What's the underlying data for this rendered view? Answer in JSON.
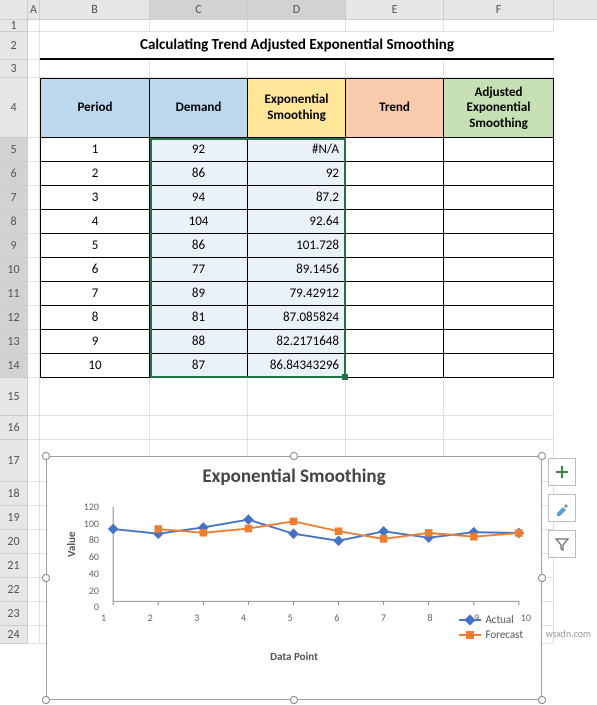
{
  "title": "Calculating Trend Adjusted Exponential Smoothing",
  "columns": [
    "A",
    "B",
    "C",
    "D",
    "E",
    "F"
  ],
  "row_numbers": [
    1,
    2,
    3,
    4,
    5,
    6,
    7,
    8,
    9,
    10,
    11,
    12,
    13,
    14,
    15,
    16,
    17,
    18,
    19,
    20,
    21,
    22,
    23,
    24
  ],
  "headers": {
    "period": "Period",
    "demand": "Demand",
    "expo": "Exponential Smoothing",
    "trend": "Trend",
    "adj": "Adjusted Exponential Smoothing"
  },
  "header_colors": {
    "period": "#bdd7ee",
    "demand": "#bdd7ee",
    "expo": "#ffe699",
    "trend": "#f8cbad",
    "adj": "#c6e0b4"
  },
  "data_bg": {
    "demand": "#eaf1f8",
    "expo": "#eaf1f8"
  },
  "rows": [
    {
      "period": "1",
      "demand": "92",
      "expo": "#N/A"
    },
    {
      "period": "2",
      "demand": "86",
      "expo": "92"
    },
    {
      "period": "3",
      "demand": "94",
      "expo": "87.2"
    },
    {
      "period": "4",
      "demand": "104",
      "expo": "92.64"
    },
    {
      "period": "5",
      "demand": "86",
      "expo": "101.728"
    },
    {
      "period": "6",
      "demand": "77",
      "expo": "89.1456"
    },
    {
      "period": "7",
      "demand": "89",
      "expo": "79.42912"
    },
    {
      "period": "8",
      "demand": "81",
      "expo": "87.085824"
    },
    {
      "period": "9",
      "demand": "88",
      "expo": "82.2171648"
    },
    {
      "period": "10",
      "demand": "87",
      "expo": "86.84343296"
    }
  ],
  "selection": {
    "start_col": "C",
    "end_col": "D",
    "start_row": 5,
    "end_row": 14
  },
  "chart": {
    "type": "line",
    "title": "Exponential Smoothing",
    "title_fontsize": 19,
    "xlabel": "Data Point",
    "ylabel": "Value",
    "label_fontsize": 11,
    "xlim": [
      1,
      10
    ],
    "xticks": [
      1,
      2,
      3,
      4,
      5,
      6,
      7,
      8,
      9,
      10
    ],
    "ylim": [
      0,
      120
    ],
    "yticks": [
      0,
      20,
      40,
      60,
      80,
      100,
      120
    ],
    "series": [
      {
        "name": "Actual",
        "color": "#4472c4",
        "marker": "diamond",
        "values": [
          92,
          86,
          94,
          104,
          86,
          77,
          89,
          81,
          88,
          87
        ]
      },
      {
        "name": "Forecast",
        "color": "#ed7d31",
        "marker": "square",
        "values": [
          null,
          92,
          87.2,
          92.64,
          101.728,
          89.1456,
          79.42912,
          87.085824,
          82.2171648,
          86.84343296
        ]
      }
    ],
    "background_color": "#ffffff",
    "axis_color": "#888888",
    "tick_fontsize": 10
  },
  "chart_buttons": {
    "plus": "+",
    "brush": "brush-icon",
    "filter": "filter-icon"
  },
  "watermark": "wsxdn.com"
}
